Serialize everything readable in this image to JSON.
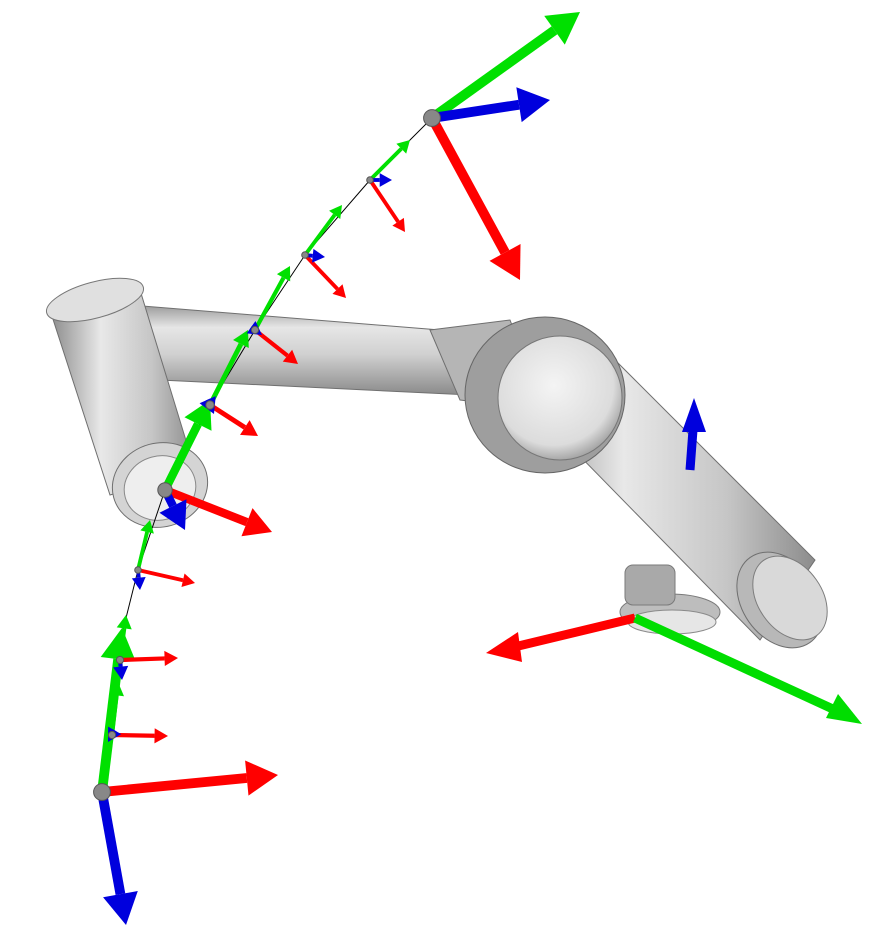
{
  "scene": {
    "background": "#ffffff",
    "colors": {
      "axis_x": "#ff0000",
      "axis_y": "#00e000",
      "axis_z": "#0000dd",
      "link_light": "#f0f0f0",
      "link_mid": "#c8c8c8",
      "link_dark": "#8c8c8c",
      "trajectory": "#000000"
    },
    "frames": {
      "count": 11,
      "description_icons": [
        "coordinate-frame-icon"
      ]
    }
  }
}
